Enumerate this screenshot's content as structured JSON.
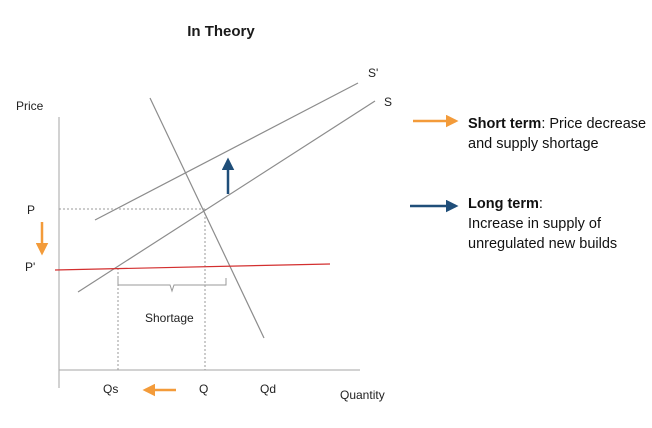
{
  "title": "In Theory",
  "axes": {
    "y_label": "Price",
    "x_label": "Quantity",
    "price_labels": {
      "p": "P",
      "p_prime": "P'"
    },
    "quantity_labels": {
      "qs": "Qs",
      "q": "Q",
      "qd": "Qd"
    }
  },
  "curves": {
    "supply": "S",
    "supply_shifted": "S'"
  },
  "annotations": {
    "shortage": "Shortage"
  },
  "legend": {
    "short_term": {
      "heading": "Short term",
      "text": ": Price decrease and supply shortage"
    },
    "long_term": {
      "heading": "Long term",
      "text": ":",
      "text2": "Increase in supply of unregulated new builds"
    }
  },
  "colors": {
    "orange_arrow": "#f39b3a",
    "navy_arrow": "#1f4e79",
    "price_ceiling": "#d32f2f",
    "lines": "#8c8c8c",
    "guides": "#999999"
  }
}
